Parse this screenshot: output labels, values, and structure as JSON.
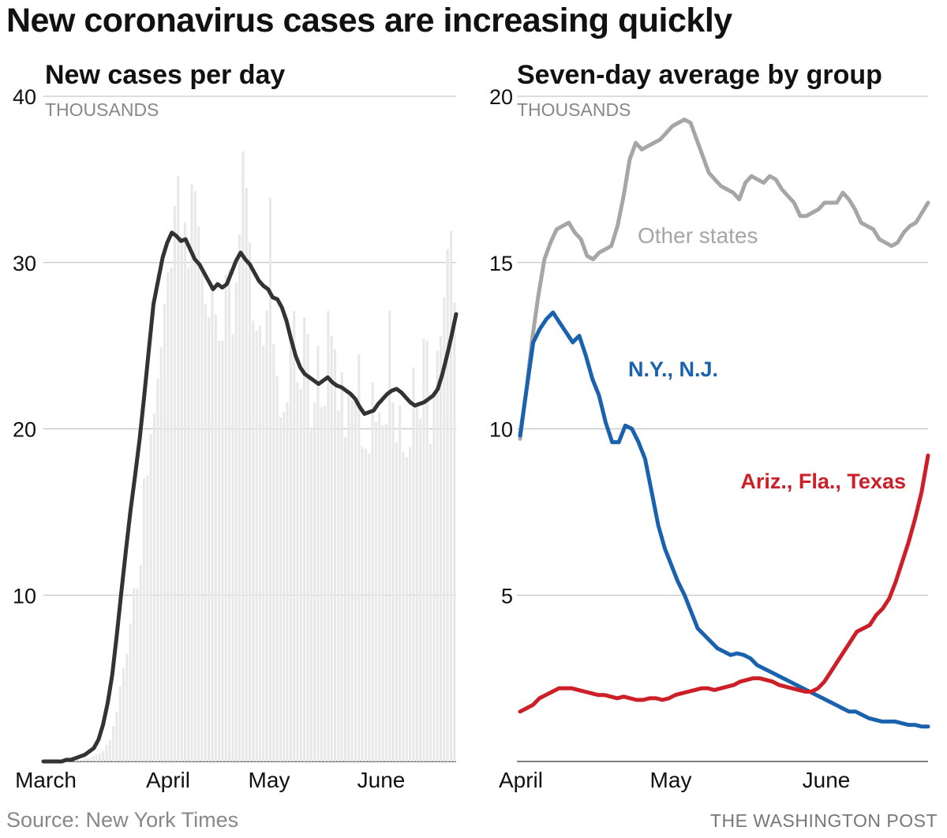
{
  "headline": "New coronavirus cases are increasing quickly",
  "source": "Source: New York Times",
  "credit": "THE WASHINGTON POST",
  "colors": {
    "line": "#333333",
    "bars": "#e8e8e8",
    "grid": "#bbbbbb",
    "other": "#a6a6a6",
    "nynj": "#1a62ae",
    "south": "#cc1f27",
    "units": "#888888"
  },
  "chart_data": [
    {
      "type": "bar",
      "title": "New cases per day",
      "units_label": "THOUSANDS",
      "ylim": [
        0,
        40
      ],
      "yticks": [
        "40",
        "30",
        "20",
        "10"
      ],
      "xticks": [
        "March",
        "April",
        "May",
        "June"
      ],
      "series": [
        {
          "name": "Daily new cases (thousands)",
          "values": [
            0,
            0,
            0,
            0,
            0,
            0,
            0,
            0,
            0,
            0.1,
            0.1,
            0.1,
            0.2,
            0.2,
            0.3,
            0.4,
            0.5,
            0.6,
            1,
            1.3,
            2.1,
            3,
            4.5,
            5.6,
            6.5,
            8.3,
            10.4,
            10.4,
            11.8,
            17,
            17.2,
            19.7,
            20.9,
            23,
            24.9,
            27.5,
            29.4,
            29.7,
            33.4,
            35.2,
            31.6,
            32.4,
            29.7,
            34.7,
            34.3,
            32.2,
            30,
            27.5,
            26.7,
            28.5,
            26.9,
            25.3,
            25.3,
            29.3,
            29.6,
            25.7,
            28.8,
            31.7,
            36.7,
            34.5,
            31.2,
            26.5,
            25.9,
            26.2,
            25,
            27.1,
            33.9,
            25.1,
            23.2,
            20.7,
            21,
            21.6,
            25.4,
            27.1,
            22.8,
            22.4,
            26.7,
            25.7,
            20.1,
            21.6,
            25,
            21.3,
            21.4,
            27.1,
            25.6,
            24.8,
            21.1,
            23.4,
            19.5,
            22,
            21.7,
            21.8,
            24.5,
            18.9,
            18.8,
            18.5,
            22.8,
            20.4,
            21,
            20.2,
            20.3,
            27.1,
            21.6,
            19.2,
            21.4,
            18.6,
            18.3,
            18.9,
            23.7,
            21.6,
            20.6,
            25.4,
            25.3,
            19.1,
            22.2,
            24.7,
            25.6,
            27.9,
            30.8,
            31.9,
            27.6
          ]
        },
        {
          "name": "Seven-day average (thousands)",
          "values": [
            0,
            0,
            0,
            0,
            0,
            0.1,
            0.1,
            0.2,
            0.3,
            0.4,
            0.6,
            0.8,
            1.3,
            2.2,
            3.5,
            5.2,
            7.6,
            10.2,
            12.7,
            15.1,
            17.2,
            19.4,
            22,
            24.8,
            27.5,
            28.9,
            30.3,
            31.2,
            31.8,
            31.6,
            31.3,
            31.4,
            30.8,
            30.2,
            29.9,
            29.4,
            28.9,
            28.4,
            28.7,
            28.5,
            28.7,
            29.4,
            30.1,
            30.6,
            30.2,
            29.9,
            29.4,
            28.9,
            28.6,
            28.4,
            27.9,
            27.8,
            27.3,
            26.5,
            25.4,
            24.4,
            23.7,
            23.3,
            23.1,
            22.9,
            22.7,
            22.9,
            23.1,
            22.8,
            22.6,
            22.5,
            22.3,
            22.1,
            21.8,
            21.3,
            20.9,
            21,
            21.1,
            21.5,
            21.8,
            22.1,
            22.3,
            22.4,
            22.2,
            21.9,
            21.6,
            21.4,
            21.5,
            21.6,
            21.8,
            22,
            22.4,
            23.3,
            24.4,
            25.6,
            26.9
          ]
        }
      ]
    },
    {
      "type": "line",
      "title": "Seven-day average by group",
      "units_label": "THOUSANDS",
      "ylim": [
        0,
        20
      ],
      "yticks": [
        "20",
        "15",
        "10",
        "5"
      ],
      "xticks": [
        "April",
        "May",
        "June"
      ],
      "series": [
        {
          "name": "Other states",
          "label": "Other states",
          "values": [
            9.7,
            11.1,
            12.7,
            14,
            15.1,
            15.6,
            16,
            16.1,
            16.2,
            15.9,
            15.7,
            15.2,
            15.1,
            15.3,
            15.4,
            15.5,
            16.1,
            17,
            18.1,
            18.6,
            18.4,
            18.5,
            18.6,
            18.7,
            18.9,
            19.1,
            19.2,
            19.3,
            19.2,
            18.7,
            18.2,
            17.7,
            17.5,
            17.3,
            17.2,
            17.1,
            16.9,
            17.4,
            17.6,
            17.5,
            17.4,
            17.6,
            17.5,
            17.2,
            17,
            16.8,
            16.4,
            16.4,
            16.5,
            16.6,
            16.8,
            16.8,
            16.8,
            17.1,
            16.9,
            16.6,
            16.2,
            16.1,
            16,
            15.7,
            15.6,
            15.5,
            15.6,
            15.9,
            16.1,
            16.2,
            16.5,
            16.8
          ]
        },
        {
          "name": "N.Y., N.J.",
          "label": "N.Y., N.J.",
          "values": [
            9.8,
            11.2,
            12.6,
            13,
            13.3,
            13.5,
            13.2,
            12.9,
            12.6,
            12.8,
            12.2,
            11.5,
            11,
            10.2,
            9.6,
            9.6,
            10.1,
            10,
            9.6,
            9.1,
            8.1,
            7.1,
            6.4,
            5.9,
            5.4,
            5,
            4.5,
            4,
            3.8,
            3.6,
            3.4,
            3.3,
            3.2,
            3.25,
            3.2,
            3.1,
            2.9,
            2.8,
            2.7,
            2.6,
            2.5,
            2.4,
            2.3,
            2.2,
            2.1,
            2,
            1.9,
            1.8,
            1.7,
            1.6,
            1.5,
            1.5,
            1.4,
            1.3,
            1.25,
            1.2,
            1.2,
            1.2,
            1.15,
            1.1,
            1.1,
            1.05,
            1.05
          ]
        },
        {
          "name": "Ariz., Fla., Texas",
          "label": "Ariz., Fla., Texas",
          "values": [
            1.5,
            1.6,
            1.7,
            1.9,
            2,
            2.1,
            2.2,
            2.2,
            2.2,
            2.15,
            2.1,
            2.05,
            2,
            2,
            1.95,
            1.9,
            1.95,
            1.9,
            1.85,
            1.85,
            1.9,
            1.9,
            1.85,
            1.9,
            2,
            2.05,
            2.1,
            2.15,
            2.2,
            2.2,
            2.15,
            2.2,
            2.25,
            2.3,
            2.4,
            2.45,
            2.5,
            2.5,
            2.45,
            2.4,
            2.3,
            2.25,
            2.2,
            2.15,
            2.1,
            2.1,
            2.2,
            2.4,
            2.7,
            3,
            3.3,
            3.6,
            3.9,
            4,
            4.1,
            4.4,
            4.6,
            4.9,
            5.4,
            6,
            6.6,
            7.3,
            8.1,
            9.2
          ]
        }
      ]
    }
  ]
}
